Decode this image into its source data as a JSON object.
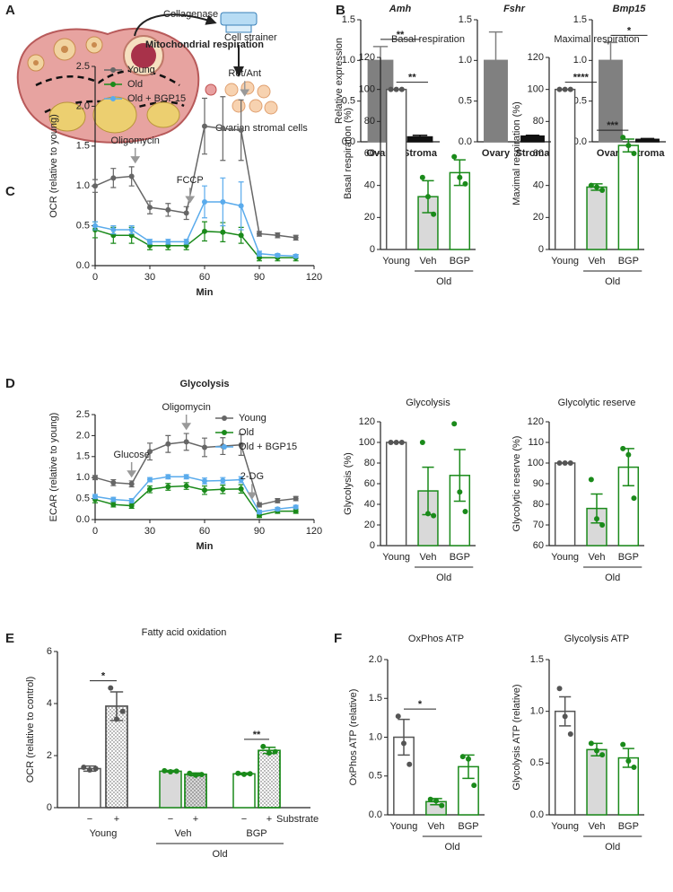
{
  "panels": [
    "A",
    "B",
    "C",
    "D",
    "E",
    "F"
  ],
  "illustration": {
    "collagenase": "Collagenase",
    "strainer": "Cell strainer",
    "cells": "Ovarian stromal cells"
  },
  "chart_data": [
    {
      "type": "bar",
      "title": "Amh",
      "ylabel": "Relative expression",
      "categories": [
        "Ovary",
        "Stroma"
      ],
      "values": [
        1.0,
        0.06
      ],
      "errors": [
        0.17,
        0.02
      ],
      "colors": [
        "#808080",
        "#111111"
      ],
      "fills": [
        "#808080",
        "#111111"
      ],
      "ylim": [
        0,
        1.5
      ],
      "yticks": [
        {
          "value": 0,
          "label": "0.0"
        },
        {
          "value": 0.5,
          "label": "0.5"
        },
        {
          "value": 1,
          "label": "1.0"
        },
        {
          "value": 1.5,
          "label": "1.5"
        }
      ],
      "significance": [
        {
          "label": "**",
          "from": 0,
          "to": 1
        }
      ]
    },
    {
      "type": "bar",
      "title": "Fshr",
      "categories": [
        "Ovary",
        "Stroma"
      ],
      "values": [
        1.0,
        0.07
      ],
      "errors": [
        0.35,
        0.01
      ],
      "colors": [
        "#808080",
        "#111111"
      ],
      "fills": [
        "#808080",
        "#111111"
      ],
      "ylim": [
        0,
        1.5
      ],
      "yticks": [
        {
          "value": 0,
          "label": "0.0"
        },
        {
          "value": 0.5,
          "label": "0.5"
        },
        {
          "value": 1,
          "label": "1.0"
        },
        {
          "value": 1.5,
          "label": "1.5"
        }
      ]
    },
    {
      "type": "bar",
      "title": "Bmp15",
      "categories": [
        "Ovary",
        "Stroma"
      ],
      "values": [
        1.0,
        0.03
      ],
      "errors": [
        0.22,
        0.01
      ],
      "colors": [
        "#808080",
        "#111111"
      ],
      "fills": [
        "#808080",
        "#111111"
      ],
      "ylim": [
        0,
        1.5
      ],
      "yticks": [
        {
          "value": 0,
          "label": "0.0"
        },
        {
          "value": 0.5,
          "label": "0.5"
        },
        {
          "value": 1,
          "label": "1.0"
        },
        {
          "value": 1.5,
          "label": "1.5"
        }
      ],
      "significance": [
        {
          "label": "*",
          "from": 0,
          "to": 1
        }
      ]
    },
    {
      "type": "line",
      "title": "Mitochondrial respiration",
      "xlabel": "Min",
      "ylabel": "OCR (relative to young)",
      "legend": "upper left",
      "x": [
        0,
        10,
        20,
        30,
        40,
        50,
        60,
        70,
        80,
        90,
        100,
        110
      ],
      "series": [
        {
          "name": "Young",
          "color": "#666666",
          "values": [
            1.0,
            1.1,
            1.12,
            0.73,
            0.7,
            0.66,
            1.75,
            1.72,
            1.7,
            0.4,
            0.38,
            0.35
          ],
          "errors": [
            0.08,
            0.12,
            0.12,
            0.08,
            0.08,
            0.08,
            0.35,
            0.4,
            0.38,
            0.03,
            0.03,
            0.03
          ]
        },
        {
          "name": "Old",
          "color": "#1a8a1a",
          "values": [
            0.45,
            0.38,
            0.38,
            0.25,
            0.25,
            0.25,
            0.43,
            0.42,
            0.38,
            0.1,
            0.1,
            0.1
          ],
          "errors": [
            0.1,
            0.1,
            0.1,
            0.05,
            0.05,
            0.05,
            0.12,
            0.12,
            0.1,
            0.04,
            0.04,
            0.04
          ]
        },
        {
          "name": "Old + BGP15",
          "color": "#5aabec",
          "values": [
            0.5,
            0.45,
            0.45,
            0.3,
            0.3,
            0.3,
            0.8,
            0.8,
            0.75,
            0.15,
            0.13,
            0.12
          ],
          "errors": [
            0.05,
            0.05,
            0.05,
            0.03,
            0.03,
            0.03,
            0.2,
            0.3,
            0.3,
            0.03,
            0.02,
            0.02
          ]
        }
      ],
      "xlim": [
        0,
        120
      ],
      "xticks": [
        0,
        30,
        60,
        90,
        120
      ],
      "ylim": [
        0,
        2.5
      ],
      "yticks": [
        {
          "value": 0,
          "label": "0.0"
        },
        {
          "value": 0.5,
          "label": "0.5"
        },
        {
          "value": 1,
          "label": "1.0"
        },
        {
          "value": 1.5,
          "label": "1.5"
        },
        {
          "value": 2,
          "label": "2.0"
        },
        {
          "value": 2.5,
          "label": "2.5"
        }
      ],
      "annotations": [
        {
          "text": "Oligomycin",
          "x": 22
        },
        {
          "text": "FCCP",
          "x": 52
        },
        {
          "text": "Rot/Ant",
          "x": 82
        }
      ]
    },
    {
      "type": "bar",
      "title": "Basal respiration",
      "ylabel": "Basal respiration (%)",
      "categories": [
        "Young",
        "Veh",
        "BGP"
      ],
      "supergroup": "Old",
      "values": [
        100,
        33,
        48
      ],
      "errors": [
        0,
        10,
        8
      ],
      "points": [
        [
          100,
          100,
          100
        ],
        [
          45,
          33,
          22
        ],
        [
          58,
          45,
          41
        ]
      ],
      "colors": [
        "#555555",
        "#1a8a1a",
        "#1a8a1a"
      ],
      "fills": [
        "#ffffff",
        "#d9d9d9",
        "#ffffff"
      ],
      "ylim": [
        0,
        120
      ],
      "yticks": [
        0,
        20,
        40,
        60,
        80,
        100,
        120
      ],
      "significance": [
        {
          "label": "**",
          "from": 0,
          "to": 1
        }
      ]
    },
    {
      "type": "bar",
      "title": "Maximal respiration",
      "ylabel": "Maximal respiration (%)",
      "categories": [
        "Young",
        "Veh",
        "BGP"
      ],
      "supergroup": "Old",
      "values": [
        100,
        39,
        65
      ],
      "errors": [
        0,
        2,
        4
      ],
      "points": [
        [
          100,
          100,
          100
        ],
        [
          40,
          39,
          37
        ],
        [
          70,
          65,
          60
        ]
      ],
      "colors": [
        "#555555",
        "#1a8a1a",
        "#1a8a1a"
      ],
      "fills": [
        "#ffffff",
        "#d9d9d9",
        "#ffffff"
      ],
      "ylim": [
        0,
        120
      ],
      "yticks": [
        0,
        20,
        40,
        60,
        80,
        100,
        120
      ],
      "significance": [
        {
          "label": "****",
          "from": 0,
          "to": 1
        },
        {
          "label": "***",
          "from": 1,
          "to": 2
        }
      ]
    },
    {
      "type": "line",
      "title": "Glycolysis",
      "xlabel": "Min",
      "ylabel": "ECAR (relative to young)",
      "legend": "upper right",
      "x": [
        0,
        10,
        20,
        30,
        40,
        50,
        60,
        70,
        80,
        90,
        100,
        110
      ],
      "series": [
        {
          "name": "Young",
          "color": "#666666",
          "values": [
            1.0,
            0.88,
            0.85,
            1.62,
            1.8,
            1.85,
            1.72,
            1.75,
            1.78,
            0.35,
            0.45,
            0.5
          ],
          "errors": [
            0.05,
            0.07,
            0.07,
            0.2,
            0.2,
            0.2,
            0.22,
            0.2,
            0.25,
            0.05,
            0.05,
            0.05
          ]
        },
        {
          "name": "Old",
          "color": "#1a8a1a",
          "values": [
            0.48,
            0.36,
            0.33,
            0.72,
            0.78,
            0.8,
            0.7,
            0.72,
            0.73,
            0.1,
            0.2,
            0.2
          ],
          "errors": [
            0.08,
            0.06,
            0.06,
            0.08,
            0.08,
            0.08,
            0.1,
            0.1,
            0.1,
            0.05,
            0.05,
            0.05
          ]
        },
        {
          "name": "Old + BGP15",
          "color": "#5aabec",
          "values": [
            0.55,
            0.48,
            0.45,
            0.95,
            1.02,
            1.02,
            0.92,
            0.93,
            0.95,
            0.18,
            0.25,
            0.3
          ],
          "errors": [
            0.05,
            0.05,
            0.05,
            0.05,
            0.05,
            0.05,
            0.07,
            0.07,
            0.07,
            0.04,
            0.04,
            0.04
          ]
        }
      ],
      "xlim": [
        0,
        120
      ],
      "xticks": [
        0,
        30,
        60,
        90,
        120
      ],
      "ylim": [
        0,
        2.5
      ],
      "yticks": [
        {
          "value": 0,
          "label": "0.0"
        },
        {
          "value": 0.5,
          "label": "0.5"
        },
        {
          "value": 1,
          "label": "1.0"
        },
        {
          "value": 1.5,
          "label": "1.5"
        },
        {
          "value": 2,
          "label": "2.0"
        },
        {
          "value": 2.5,
          "label": "2.5"
        }
      ],
      "annotations": [
        {
          "text": "Glucose",
          "x": 20
        },
        {
          "text": "Oligomycin",
          "x": 50
        },
        {
          "text": "2-DG",
          "x": 86
        }
      ]
    },
    {
      "type": "bar",
      "title": "Glycolysis",
      "ylabel": "Glycolysis (%)",
      "categories": [
        "Young",
        "Veh",
        "BGP"
      ],
      "supergroup": "Old",
      "values": [
        100,
        53,
        68
      ],
      "errors": [
        0,
        23,
        25
      ],
      "points": [
        [
          100,
          100,
          100
        ],
        [
          100,
          31,
          29
        ],
        [
          118,
          52,
          33
        ]
      ],
      "colors": [
        "#555555",
        "#1a8a1a",
        "#1a8a1a"
      ],
      "fills": [
        "#ffffff",
        "#d9d9d9",
        "#ffffff"
      ],
      "ylim": [
        0,
        120
      ],
      "yticks": [
        0,
        20,
        40,
        60,
        80,
        100,
        120
      ]
    },
    {
      "type": "bar",
      "title": "Glycolytic reserve",
      "ylabel": "Glycolytic reserve (%)",
      "categories": [
        "Young",
        "Veh",
        "BGP"
      ],
      "supergroup": "Old",
      "values": [
        100,
        78,
        98
      ],
      "errors": [
        0,
        7,
        9
      ],
      "points": [
        [
          100,
          100,
          100
        ],
        [
          92,
          73,
          70
        ],
        [
          107,
          104,
          83
        ]
      ],
      "colors": [
        "#555555",
        "#1a8a1a",
        "#1a8a1a"
      ],
      "fills": [
        "#ffffff",
        "#d9d9d9",
        "#ffffff"
      ],
      "ylim": [
        60,
        120
      ],
      "yticks": [
        60,
        70,
        80,
        90,
        100,
        110,
        120
      ]
    },
    {
      "type": "bar",
      "title": "Fatty acid oxidation",
      "ylabel": "OCR (relative to control)",
      "categories": [
        "−",
        "+",
        "−",
        "+",
        "−",
        "+"
      ],
      "groups": [
        "Young",
        "Veh",
        "BGP"
      ],
      "supergroup": "Old",
      "substrate_label": "Substrate",
      "values": [
        1.5,
        3.9,
        1.4,
        1.28,
        1.3,
        2.2
      ],
      "errors": [
        0.1,
        0.55,
        0.03,
        0.05,
        0.03,
        0.12
      ],
      "points": [
        [
          1.55,
          1.45,
          1.5
        ],
        [
          4.6,
          3.4,
          3.7
        ],
        [
          1.42,
          1.38,
          1.4
        ],
        [
          1.32,
          1.25,
          1.27
        ],
        [
          1.32,
          1.28,
          1.3
        ],
        [
          2.35,
          2.1,
          2.15
        ]
      ],
      "colors": [
        "#555555",
        "#555555",
        "#1a8a1a",
        "#1a8a1a",
        "#1a8a1a",
        "#1a8a1a"
      ],
      "fills": [
        "#ffffff",
        "#ffffff",
        "#d9d9d9",
        "#d9d9d9",
        "#ffffff",
        "#ffffff"
      ],
      "hatch": [
        "none",
        "dots",
        "none",
        "dots",
        "none",
        "dots"
      ],
      "ylim": [
        0,
        6
      ],
      "yticks": [
        0,
        2,
        4,
        6
      ],
      "significance": [
        {
          "label": "*",
          "from": 0,
          "to": 1
        },
        {
          "label": "**",
          "from": 4,
          "to": 5
        }
      ]
    },
    {
      "type": "bar",
      "title": "OxPhos ATP",
      "ylabel": "OxPhos ATP (relative)",
      "categories": [
        "Young",
        "Veh",
        "BGP"
      ],
      "supergroup": "Old",
      "values": [
        1.0,
        0.17,
        0.62
      ],
      "errors": [
        0.23,
        0.04,
        0.15
      ],
      "points": [
        [
          1.27,
          0.92,
          0.65
        ],
        [
          0.2,
          0.18,
          0.12
        ],
        [
          0.75,
          0.72,
          0.38
        ]
      ],
      "colors": [
        "#555555",
        "#1a8a1a",
        "#1a8a1a"
      ],
      "fills": [
        "#ffffff",
        "#d9d9d9",
        "#ffffff"
      ],
      "ylim": [
        0,
        2
      ],
      "yticks": [
        {
          "value": 0,
          "label": "0.0"
        },
        {
          "value": 0.5,
          "label": "0.5"
        },
        {
          "value": 1,
          "label": "1.0"
        },
        {
          "value": 1.5,
          "label": "1.5"
        },
        {
          "value": 2,
          "label": "2.0"
        }
      ],
      "significance": [
        {
          "label": "*",
          "from": 0,
          "to": 1
        }
      ]
    },
    {
      "type": "bar",
      "title": "Glycolysis ATP",
      "ylabel": "Glycolysis ATP (relative)",
      "categories": [
        "Young",
        "Veh",
        "BGP"
      ],
      "supergroup": "Old",
      "values": [
        1.0,
        0.63,
        0.55
      ],
      "errors": [
        0.14,
        0.06,
        0.09
      ],
      "points": [
        [
          1.22,
          0.95,
          0.78
        ],
        [
          0.69,
          0.62,
          0.58
        ],
        [
          0.68,
          0.52,
          0.46
        ]
      ],
      "colors": [
        "#555555",
        "#1a8a1a",
        "#1a8a1a"
      ],
      "fills": [
        "#ffffff",
        "#d9d9d9",
        "#ffffff"
      ],
      "ylim": [
        0,
        1.5
      ],
      "yticks": [
        {
          "value": 0,
          "label": "0.0"
        },
        {
          "value": 0.5,
          "label": "0.5"
        },
        {
          "value": 1,
          "label": "1.0"
        },
        {
          "value": 1.5,
          "label": "1.5"
        }
      ]
    }
  ]
}
